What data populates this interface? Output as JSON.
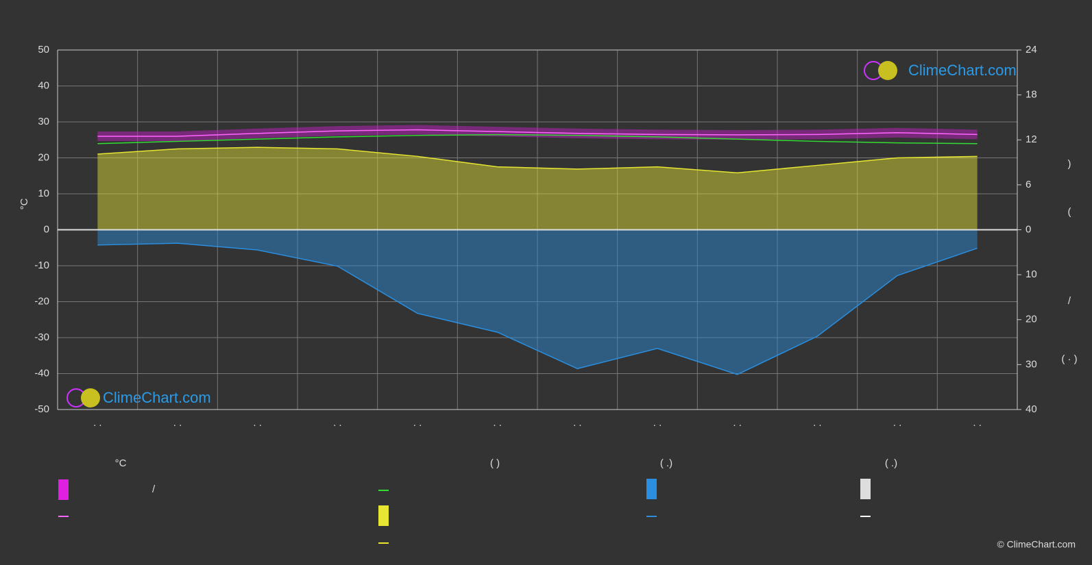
{
  "chart_data": {
    "type": "line",
    "categories": [
      ". .",
      ". .",
      ". .",
      ". .",
      ". .",
      ". .",
      ". .",
      ". .",
      ". .",
      ". .",
      ". .",
      ". ."
    ],
    "ylabel": "°C",
    "ylim": [
      -50,
      50
    ],
    "yticks": [
      -50,
      -40,
      -30,
      -20,
      -10,
      0,
      10,
      20,
      30,
      40,
      50
    ],
    "y2lim": [
      0,
      24
    ],
    "y2ticks": [
      0,
      6,
      12,
      18,
      24
    ],
    "precip_lim": [
      0,
      40
    ],
    "precip_ticks": [
      10,
      20,
      30,
      40
    ],
    "right_axis_texts": [
      ")",
      "(",
      "/",
      "( · )"
    ],
    "grid": true,
    "series": [
      {
        "color": "#ff66ff",
        "values": [
          26,
          26,
          26.8,
          27.5,
          27.8,
          27.3,
          26.8,
          26.5,
          26.4,
          26.5,
          27,
          26.5
        ]
      },
      {
        "color": "#33dd33",
        "axis": "y2",
        "values": [
          11.5,
          11.8,
          12.1,
          12.4,
          12.6,
          12.7,
          12.6,
          12.4,
          12.1,
          11.8,
          11.6,
          11.5
        ]
      },
      {
        "color": "#e6e633",
        "axis": "y2",
        "fill": true,
        "values": [
          10.1,
          10.8,
          11,
          10.8,
          9.8,
          8.4,
          8.1,
          8.4,
          7.6,
          8.6,
          9.6,
          9.8
        ]
      },
      {
        "color": "#2a8fe0",
        "axis": "precip",
        "fill": true,
        "values": [
          3.4,
          3,
          4.5,
          8.1,
          18.6,
          22.8,
          30.9,
          26.4,
          32.2,
          23.7,
          10.2,
          4.1
        ]
      }
    ],
    "legend_headers": [
      "°C",
      "(          )",
      "(   .)",
      "(   .)"
    ],
    "legend_texts": [
      "/"
    ],
    "logo": "ClimeChart.com",
    "copyright": "© ClimeChart.com"
  }
}
